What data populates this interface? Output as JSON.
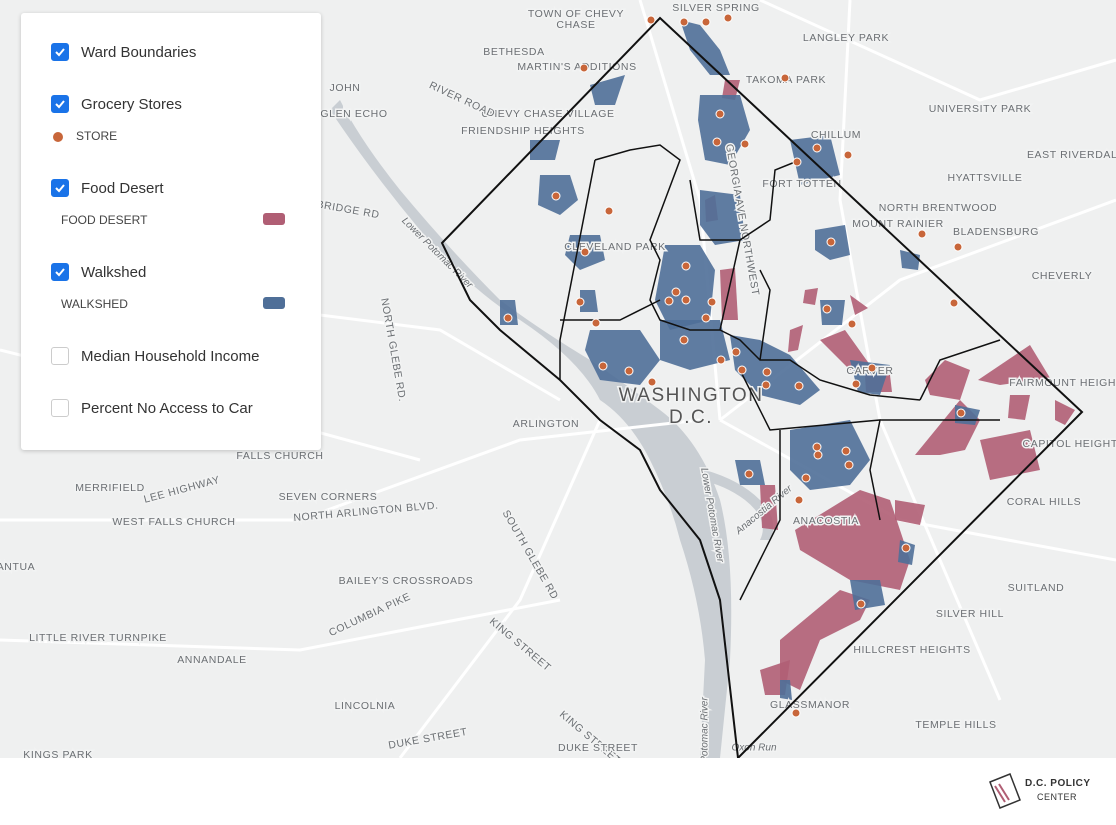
{
  "legend": {
    "items": [
      {
        "label": "Ward Boundaries",
        "checked": true
      },
      {
        "label": "Grocery Stores",
        "checked": true,
        "sublabel": "STORE",
        "swatch": "#c8663a",
        "swatch_shape": "dot"
      },
      {
        "label": "Food Desert",
        "checked": true,
        "sublabel": "FOOD DESERT",
        "swatch": "#b05e74",
        "swatch_shape": "rect"
      },
      {
        "label": "Walkshed",
        "checked": true,
        "sublabel": "WALKSHED",
        "swatch": "#4f6f98",
        "swatch_shape": "rect"
      },
      {
        "label": "Median Household Income",
        "checked": false
      },
      {
        "label": "Percent No Access to Car",
        "checked": false
      }
    ]
  },
  "map": {
    "labels": [
      "TOWN OF CHEVY",
      "CHASE",
      "SILVER SPRING",
      "BETHESDA",
      "MARTIN'S ADDITIONS",
      "LANGLEY PARK",
      "TAKOMA PARK",
      "UNIVERSITY PARK",
      "CHILLUM",
      "EAST RIVERDALE",
      "HYATTSVILLE",
      "CHEVY CHASE VILLAGE",
      "FRIENDSHIP HEIGHTS",
      "RIVER ROAD",
      "JOHN",
      "GLEN ECHO",
      "FORT TOTTEN",
      "NORTH BRENTWOOD",
      "MOUNT RAINIER",
      "BLADENSBURG",
      "CHEVERLY",
      "CLEVELAND PARK",
      "GEORGIA AVE NORTHWEST",
      "WASHINGTON",
      "D.C.",
      "ARLINGTON",
      "CARVER",
      "FAIRMOUNT HEIGHTS",
      "CAPITOL HEIGHTS",
      "CORAL HILLS",
      "ANACOSTIA",
      "SUITLAND",
      "SILVER HILL",
      "HILLCREST HEIGHTS",
      "GLASSMANOR",
      "TEMPLE HILLS",
      "FALLS CHURCH",
      "MERRIFIELD",
      "LEE HIGHWAY",
      "SEVEN CORNERS",
      "NORTH ARLINGTON BLVD.",
      "WEST FALLS CHURCH",
      "BAILEY'S CROSSROADS",
      "COLUMBIA PIKE",
      "LITTLE RIVER TURNPIKE",
      "ANNANDALE",
      "LINCOLNIA",
      "DUKE STREET",
      "KINGS PARK",
      "KING STREET",
      "KING STREET",
      "DUKE STREET",
      "SOUTH GLEBE RD",
      "NORTH GLEBE RD.",
      "BRIDGE RD",
      "Lower Potomac River",
      "Anacostia River",
      "Lower Potomac River",
      "Potomac River",
      "Oxon Run",
      "ANTUA"
    ]
  },
  "footer": {
    "logo_line1": "D.C. POLICY",
    "logo_line2": "CENTER"
  }
}
